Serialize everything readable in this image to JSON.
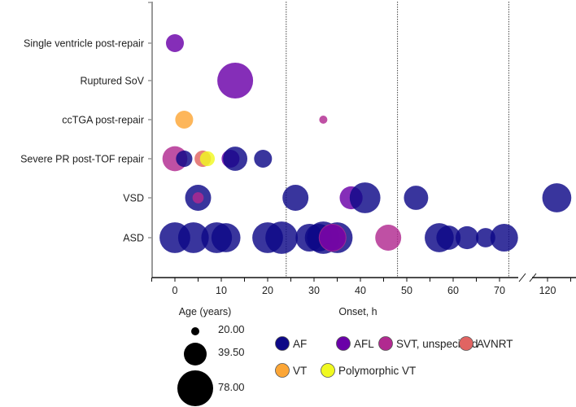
{
  "chart_data": {
    "type": "scatter",
    "subtype": "bubble",
    "xlabel": "Onset, h",
    "size_label": "Age (years)",
    "categories": [
      "Single ventricle post-repair",
      "Ruptured SoV",
      "ccTGA post-repair",
      "Severe PR post-TOF repair",
      "VSD",
      "ASD"
    ],
    "x_ticks": [
      0,
      10,
      20,
      30,
      40,
      50,
      60,
      70,
      120
    ],
    "x_break": [
      72,
      118
    ],
    "reference_lines": [
      24,
      48,
      72
    ],
    "size_legend": [
      {
        "value": 20,
        "label": "20.00"
      },
      {
        "value": 39.5,
        "label": "39.50"
      },
      {
        "value": 78,
        "label": "78.00"
      }
    ],
    "series": [
      {
        "name": "AF",
        "color": "#0d0887"
      },
      {
        "name": "AFL",
        "color": "#6a00a8"
      },
      {
        "name": "SVT, unspecified",
        "color": "#b12a90"
      },
      {
        "name": "AVNRT",
        "color": "#e16462"
      },
      {
        "name": "VT",
        "color": "#fca636"
      },
      {
        "name": "Polymorphic VT",
        "color": "#f0f921"
      }
    ],
    "points": [
      {
        "cat": "Single ventricle post-repair",
        "x": 0,
        "age": 33,
        "type": "AFL"
      },
      {
        "cat": "Ruptured SoV",
        "x": 13,
        "age": 78,
        "type": "AFL"
      },
      {
        "cat": "ccTGA post-repair",
        "x": 2,
        "age": 33,
        "type": "VT"
      },
      {
        "cat": "ccTGA post-repair",
        "x": 32,
        "age": 20,
        "type": "SVT, unspecified"
      },
      {
        "cat": "Severe PR post-TOF repair",
        "x": 0,
        "age": 46,
        "type": "SVT, unspecified"
      },
      {
        "cat": "Severe PR post-TOF repair",
        "x": 2,
        "age": 31,
        "type": "AF"
      },
      {
        "cat": "Severe PR post-TOF repair",
        "x": 6,
        "age": 31,
        "type": "AVNRT"
      },
      {
        "cat": "Severe PR post-TOF repair",
        "x": 7,
        "age": 29,
        "type": "Polymorphic VT"
      },
      {
        "cat": "Severe PR post-TOF repair",
        "x": 12,
        "age": 33,
        "type": "AFL"
      },
      {
        "cat": "Severe PR post-TOF repair",
        "x": 13,
        "age": 44,
        "type": "AF"
      },
      {
        "cat": "Severe PR post-TOF repair",
        "x": 19,
        "age": 33,
        "type": "AF"
      },
      {
        "cat": "VSD",
        "x": 5,
        "age": 49,
        "type": "AF"
      },
      {
        "cat": "VSD",
        "x": 5,
        "age": 24,
        "type": "SVT, unspecified"
      },
      {
        "cat": "VSD",
        "x": 26,
        "age": 49,
        "type": "AF"
      },
      {
        "cat": "VSD",
        "x": 38,
        "age": 40,
        "type": "AFL"
      },
      {
        "cat": "VSD",
        "x": 41,
        "age": 63,
        "type": "AF"
      },
      {
        "cat": "VSD",
        "x": 52,
        "age": 44,
        "type": "AF"
      },
      {
        "cat": "VSD",
        "x": 122,
        "age": 58,
        "type": "AF"
      },
      {
        "cat": "ASD",
        "x": 0,
        "age": 63,
        "type": "AF"
      },
      {
        "cat": "ASD",
        "x": 4,
        "age": 63,
        "type": "AF"
      },
      {
        "cat": "ASD",
        "x": 9,
        "age": 63,
        "type": "AF"
      },
      {
        "cat": "ASD",
        "x": 11,
        "age": 58,
        "type": "AF"
      },
      {
        "cat": "ASD",
        "x": 20,
        "age": 63,
        "type": "AF"
      },
      {
        "cat": "ASD",
        "x": 23,
        "age": 68,
        "type": "AF"
      },
      {
        "cat": "ASD",
        "x": 29,
        "age": 54,
        "type": "AF"
      },
      {
        "cat": "ASD",
        "x": 31,
        "age": 54,
        "type": "AF"
      },
      {
        "cat": "ASD",
        "x": 32,
        "age": 68,
        "type": "AF"
      },
      {
        "cat": "ASD",
        "x": 35,
        "age": 63,
        "type": "AF"
      },
      {
        "cat": "ASD",
        "x": 34,
        "age": 54,
        "type": "SVT, unspecified"
      },
      {
        "cat": "ASD",
        "x": 34,
        "age": 49,
        "type": "AFL"
      },
      {
        "cat": "ASD",
        "x": 46,
        "age": 49,
        "type": "SVT, unspecified"
      },
      {
        "cat": "ASD",
        "x": 57,
        "age": 58,
        "type": "AF"
      },
      {
        "cat": "ASD",
        "x": 59,
        "age": 44,
        "type": "AF"
      },
      {
        "cat": "ASD",
        "x": 63,
        "age": 40,
        "type": "AF"
      },
      {
        "cat": "ASD",
        "x": 67,
        "age": 35,
        "type": "AF"
      },
      {
        "cat": "ASD",
        "x": 71,
        "age": 54,
        "type": "AF"
      }
    ]
  }
}
